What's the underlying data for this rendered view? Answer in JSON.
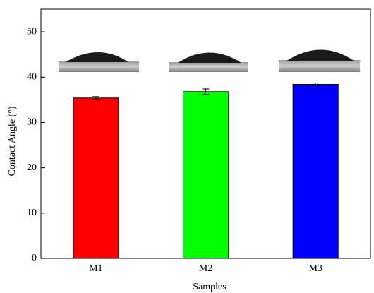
{
  "chart_data": {
    "type": "bar",
    "x_label": "Samples",
    "y_label": "Contact Angle (°)",
    "categories": [
      "M1",
      "M2",
      "M3"
    ],
    "values": [
      35.4,
      36.8,
      38.4
    ],
    "errors": [
      0.3,
      0.6,
      0.3
    ],
    "colors": [
      "#ff0000",
      "#00ff00",
      "#0000ff"
    ],
    "ylim": [
      0,
      55
    ],
    "yticks": [
      0,
      10,
      20,
      30,
      40,
      50
    ]
  }
}
